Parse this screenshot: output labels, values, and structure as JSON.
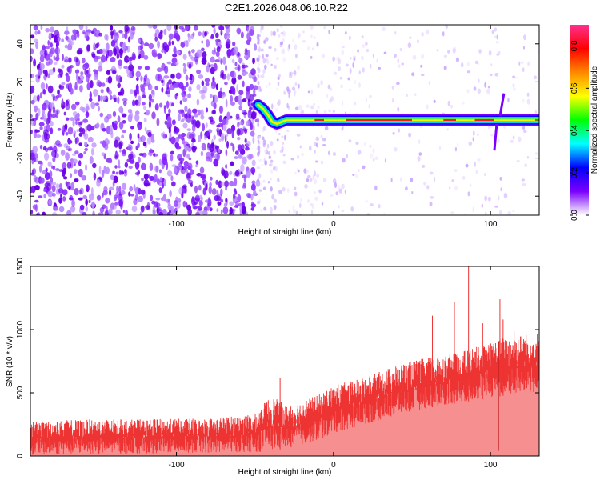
{
  "figure_title": "C2E1.2026.048.06.10.R22",
  "chart_data": [
    {
      "type": "heatmap",
      "title": "C2E1.2026.048.06.10.R22",
      "xlabel": "Height of straight line (km)",
      "ylabel": "Frequency (Hz)",
      "xlim": [
        -193,
        131
      ],
      "ylim": [
        -50,
        50
      ],
      "x_ticks": [
        -100,
        0,
        100
      ],
      "x_tick_labels": [
        "-100",
        "0",
        "100"
      ],
      "y_ticks": [
        -40,
        -20,
        0,
        20,
        40
      ],
      "y_tick_labels": [
        "-40",
        "-20",
        "0",
        "20",
        "40"
      ],
      "grid": false,
      "colorbar": {
        "label": "Normalized spectral amplitude",
        "range": [
          0.0,
          0.9
        ],
        "ticks": [
          0.0,
          0.2,
          0.4,
          0.6,
          0.8
        ],
        "tick_labels": [
          "0.0",
          "0.2",
          "0.4",
          "0.6",
          "0.8"
        ],
        "colormap": [
          "#ffffff",
          "#7b00ff",
          "#0000ff",
          "#00ffff",
          "#00ff00",
          "#ffff00",
          "#ff8800",
          "#ff0000",
          "#ff3090"
        ]
      },
      "noise_region_x": [
        -193,
        -48
      ],
      "signal_track": {
        "frequency_hz": 0,
        "onset_km": -48,
        "descending_points": [
          [
            -48,
            8
          ],
          [
            -45,
            6
          ],
          [
            -42,
            3
          ],
          [
            -39,
            -1
          ],
          [
            -36,
            -2
          ]
        ],
        "peak_amplitude": 0.88,
        "disturbance_x_km": 105
      }
    },
    {
      "type": "line",
      "xlabel": "Height of straight line (km)",
      "ylabel": "SNR (10 * v/v)",
      "xlim": [
        -193,
        131
      ],
      "ylim": [
        0,
        1500
      ],
      "x_ticks": [
        -100,
        0,
        100
      ],
      "x_tick_labels": [
        "-100",
        "0",
        "100"
      ],
      "y_ticks": [
        0,
        500,
        1000,
        1500
      ],
      "y_tick_labels": [
        "0",
        "500",
        "1000",
        "1500"
      ],
      "grid": false,
      "series": [
        {
          "name": "SNR",
          "color": "#ee3333",
          "x": [
            -193,
            -160,
            -120,
            -80,
            -50,
            -40,
            -30,
            -10,
            0,
            20,
            40,
            60,
            80,
            100,
            110,
            131
          ],
          "upper": [
            270,
            290,
            290,
            300,
            330,
            480,
            400,
            480,
            560,
            620,
            720,
            780,
            820,
            900,
            950,
            980
          ],
          "lower": [
            10,
            15,
            20,
            25,
            30,
            40,
            60,
            120,
            180,
            250,
            320,
            380,
            420,
            460,
            480,
            500
          ],
          "spikes": [
            [
              -34,
              620
            ],
            [
              63,
              1110
            ],
            [
              77,
              1220
            ],
            [
              86,
              1500
            ],
            [
              95,
              1050
            ],
            [
              106,
              1240
            ],
            [
              108,
              1080
            ],
            [
              115,
              990
            ]
          ],
          "dropout": [
            105,
            40
          ]
        }
      ]
    }
  ]
}
